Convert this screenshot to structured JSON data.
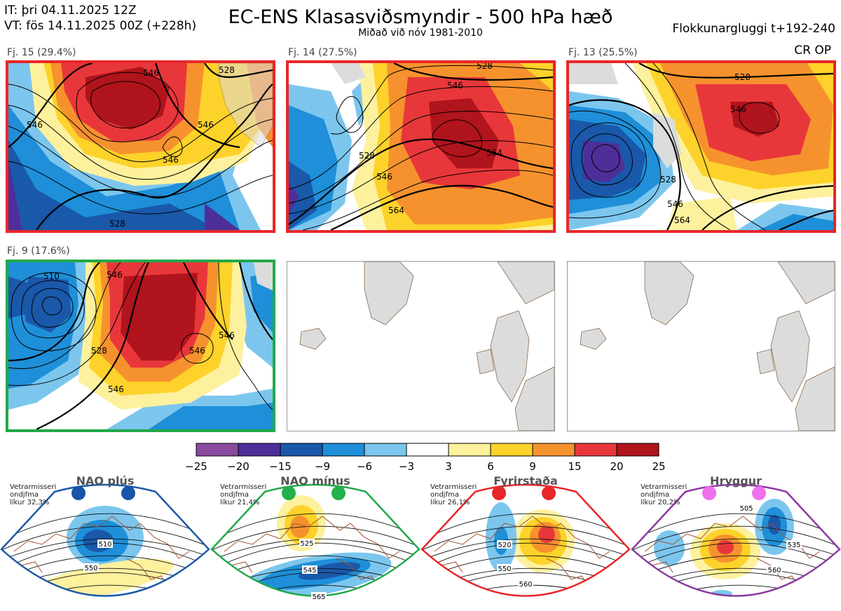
{
  "header": {
    "it_line": "IT: þri 04.11.2025 12Z",
    "vt_line": "VT: fös 14.11.2025 00Z  (+228h)",
    "title": "EC-ENS Klasasviðsmyndir - 500 hPa hæð",
    "subtitle": "Miðað við nóv 1981-2010",
    "window": "Flokkunargluggi t+192-240",
    "crop": "CR OP"
  },
  "colors": {
    "border_red": "#e8262a",
    "border_green": "#22a84a",
    "border_blue": "#1d5aa8",
    "border_purple": "#8a3aa0",
    "land": "#dcdcdc",
    "coast": "#8b6a4a"
  },
  "panels": [
    {
      "label": "Fj. 15 (29.4%)",
      "contours": [
        "546",
        "546",
        "546",
        "528",
        "528",
        "546"
      ]
    },
    {
      "label": "Fj. 14 (27.5%)",
      "contours": [
        "528",
        "546",
        "564",
        "528",
        "546",
        "564"
      ]
    },
    {
      "label": "Fj. 13 (25.5%)",
      "contours": [
        "528",
        "546",
        "528",
        "546",
        "564"
      ]
    },
    {
      "label": "Fj. 9 (17.6%)",
      "contours": [
        "510",
        "546",
        "528",
        "546",
        "546",
        "546"
      ]
    }
  ],
  "chart_data": {
    "type": "heatmap",
    "title": "EC-ENS Klasasviðsmyndir - 500 hPa hæð",
    "colorbar": {
      "ticks": [
        "−25",
        "−20",
        "−15",
        "−9",
        "−6",
        "−3",
        "3",
        "6",
        "9",
        "15",
        "20",
        "25"
      ],
      "colors": [
        "#8a4a9e",
        "#4e2f9a",
        "#1a58aa",
        "#1e8fd8",
        "#7cc6ee",
        "#ffffff",
        "#fdf19e",
        "#fdd22a",
        "#f6922e",
        "#e8373a",
        "#b0141c"
      ]
    },
    "regimes": [
      {
        "name": "NAO plús",
        "note": [
          "Vetrarmisseri",
          "ondjfma",
          "líkur 32,3%"
        ],
        "dot_color": "#1655a8",
        "border": "#1d5aa8",
        "labels": [
          "510",
          "550"
        ]
      },
      {
        "name": "NAO mínus",
        "note": [
          "Vetrarmisseri",
          "ondjfma",
          "líkur 21,4%"
        ],
        "dot_color": "#22b04a",
        "border": "#22a84a",
        "labels": [
          "525",
          "545",
          "565"
        ]
      },
      {
        "name": "Fyrirstaða",
        "note": [
          "Vetrarmisseri",
          "ondjfma",
          "líkur 26,1%"
        ],
        "dot_color": "#e8262a",
        "border": "#e8262a",
        "labels": [
          "520",
          "550",
          "560"
        ]
      },
      {
        "name": "Hryggur",
        "note": [
          "Vetrarmisseri",
          "ondjfma",
          "líkur 20,2%"
        ],
        "dot_color": "#ee70ee",
        "border": "#8a3aa0",
        "labels": [
          "505",
          "535",
          "560"
        ]
      }
    ]
  }
}
